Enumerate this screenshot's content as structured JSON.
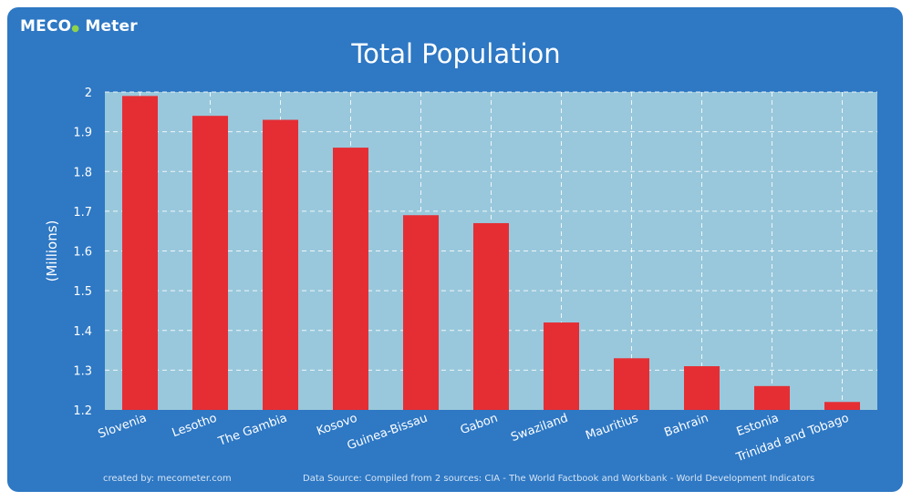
{
  "logo": {
    "prefix": "M",
    "eco": "ECO",
    "suffix": "Meter"
  },
  "footer": {
    "created_by": "created by: mecometer.com",
    "source": "Data Source: Compiled from 2 sources: CIA - The World Factbook and Workbank - World Development Indicators"
  },
  "colors": {
    "background": "#2e78c4",
    "plot_area": "#99c8dc",
    "bar": "#e52e34",
    "grid": "#ffffff"
  },
  "chart_data": {
    "type": "bar",
    "title": "Total Population",
    "xlabel": "",
    "ylabel": "(Millions)",
    "ylim": [
      1.2,
      2.0
    ],
    "yticks": [
      "1.2",
      "1.3",
      "1.4",
      "1.5",
      "1.6",
      "1.7",
      "1.8",
      "1.9",
      "2"
    ],
    "grid": true,
    "categories": [
      "Slovenia",
      "Lesotho",
      "The Gambia",
      "Kosovo",
      "Guinea-Bissau",
      "Gabon",
      "Swaziland",
      "Mauritius",
      "Bahrain",
      "Estonia",
      "Trinidad and Tobago"
    ],
    "values": [
      1.99,
      1.94,
      1.93,
      1.86,
      1.69,
      1.67,
      1.42,
      1.33,
      1.31,
      1.26,
      1.22
    ]
  }
}
